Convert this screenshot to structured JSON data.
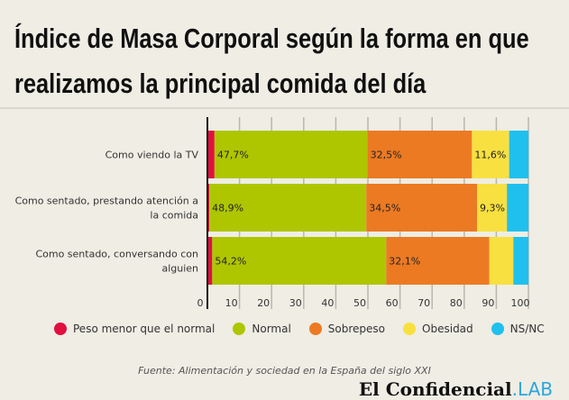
{
  "title_line1": "Índice de Masa Corporal según la forma en que",
  "title_line2": "realizamos la principal comida del día",
  "chart_data": {
    "type": "bar",
    "orientation": "horizontal",
    "stacked": true,
    "title": "Índice de Masa Corporal según la forma en que realizamos la principal comida del día",
    "categories": [
      "Como viendo la TV",
      "Como sentado, prestando atención a la comida",
      "Como sentado, conversando con alguien"
    ],
    "series": [
      {
        "name": "Peso menor que el normal",
        "color": "#e0103f",
        "values": [
          2.2,
          0.6,
          1.5
        ],
        "labels": [
          "",
          "",
          ""
        ]
      },
      {
        "name": "Normal",
        "color": "#aec600",
        "values": [
          47.7,
          48.9,
          54.2
        ],
        "labels": [
          "47,7%",
          "48,9%",
          "54,2%"
        ]
      },
      {
        "name": "Sobrepeso",
        "color": "#ec7a22",
        "values": [
          32.5,
          34.5,
          32.1
        ],
        "labels": [
          "32,5%",
          "34,5%",
          "32,1%"
        ]
      },
      {
        "name": "Obesidad",
        "color": "#f8e040",
        "values": [
          11.6,
          9.3,
          7.5
        ],
        "labels": [
          "11,6%",
          "9,3%",
          ""
        ]
      },
      {
        "name": "NS/NC",
        "color": "#1fc0ee",
        "values": [
          6.0,
          6.7,
          4.7
        ],
        "labels": [
          "",
          "",
          ""
        ]
      }
    ],
    "xlim": [
      0,
      100
    ],
    "xticks": [
      "0",
      "10",
      "20",
      "30",
      "40",
      "50",
      "60",
      "70",
      "80",
      "90",
      "100"
    ],
    "grid": true,
    "legend": "bottom"
  },
  "source": "Fuente: Alimentación y sociedad en la España del siglo XXI",
  "logo": {
    "main": "El Confidencial",
    "suffix": ".LAB"
  }
}
